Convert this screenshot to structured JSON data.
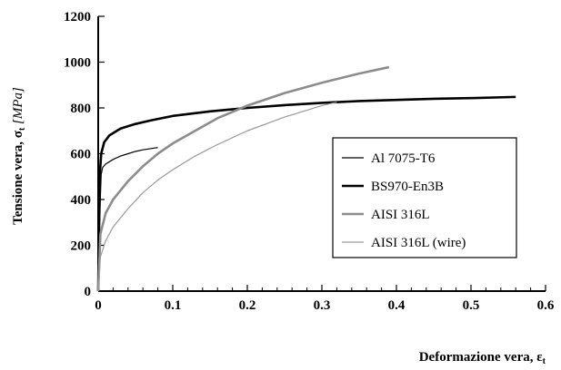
{
  "chart_data": {
    "type": "line",
    "xlabel": "Deformazione vera, ε",
    "xlabel_sub": "t",
    "ylabel": "Tensione vera, σ",
    "ylabel_sub": "t",
    "ylabel_unit": " [MPa]",
    "xlim": [
      0,
      0.6
    ],
    "ylim": [
      0,
      1200
    ],
    "x_ticks": [
      "0",
      "0.1",
      "0.2",
      "0.3",
      "0.4",
      "0.5",
      "0.6"
    ],
    "y_ticks": [
      "0",
      "200",
      "400",
      "600",
      "800",
      "1000",
      "1200"
    ],
    "grid": false,
    "legend_position": "right",
    "series": [
      {
        "name": "Al 7075-T6",
        "color": "#000000",
        "line_width": 1.2,
        "points": [
          [
            0,
            0
          ],
          [
            0.001,
            150
          ],
          [
            0.002,
            290
          ],
          [
            0.003,
            420
          ],
          [
            0.004,
            510
          ],
          [
            0.006,
            540
          ],
          [
            0.01,
            555
          ],
          [
            0.02,
            575
          ],
          [
            0.03,
            590
          ],
          [
            0.04,
            600
          ],
          [
            0.05,
            610
          ],
          [
            0.06,
            617
          ],
          [
            0.07,
            622
          ],
          [
            0.08,
            627
          ]
        ]
      },
      {
        "name": "BS970-En3B",
        "color": "#000000",
        "line_width": 2.6,
        "points": [
          [
            0,
            0
          ],
          [
            0.002,
            500
          ],
          [
            0.004,
            600
          ],
          [
            0.008,
            650
          ],
          [
            0.015,
            680
          ],
          [
            0.03,
            710
          ],
          [
            0.05,
            730
          ],
          [
            0.07,
            745
          ],
          [
            0.1,
            765
          ],
          [
            0.15,
            785
          ],
          [
            0.2,
            800
          ],
          [
            0.25,
            812
          ],
          [
            0.3,
            822
          ],
          [
            0.35,
            830
          ],
          [
            0.4,
            835
          ],
          [
            0.45,
            840
          ],
          [
            0.5,
            843
          ],
          [
            0.56,
            848
          ]
        ]
      },
      {
        "name": "AISI 316L",
        "color": "#8c8c8c",
        "line_width": 2.6,
        "points": [
          [
            0,
            0
          ],
          [
            0.003,
            250
          ],
          [
            0.01,
            340
          ],
          [
            0.02,
            400
          ],
          [
            0.04,
            480
          ],
          [
            0.06,
            545
          ],
          [
            0.08,
            600
          ],
          [
            0.1,
            645
          ],
          [
            0.13,
            700
          ],
          [
            0.16,
            755
          ],
          [
            0.2,
            810
          ],
          [
            0.25,
            865
          ],
          [
            0.3,
            910
          ],
          [
            0.35,
            950
          ],
          [
            0.39,
            978
          ]
        ]
      },
      {
        "name": "AISI 316L (wire)",
        "color": "#9a9a9a",
        "line_width": 1.2,
        "points": [
          [
            0,
            0
          ],
          [
            0.003,
            150
          ],
          [
            0.01,
            220
          ],
          [
            0.02,
            280
          ],
          [
            0.04,
            360
          ],
          [
            0.06,
            430
          ],
          [
            0.08,
            485
          ],
          [
            0.1,
            530
          ],
          [
            0.13,
            590
          ],
          [
            0.16,
            640
          ],
          [
            0.2,
            700
          ],
          [
            0.25,
            760
          ],
          [
            0.3,
            810
          ],
          [
            0.32,
            825
          ]
        ]
      }
    ]
  }
}
